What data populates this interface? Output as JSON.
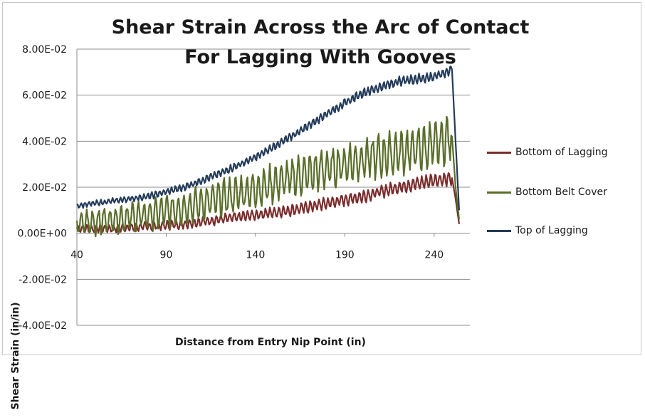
{
  "chart_data": {
    "type": "line",
    "title": "Shear Strain Across the Arc of Contact For Lagging With Gooves",
    "xlabel": "Distance from Entry Nip Point (in)",
    "ylabel": "Shear Strain (in/in)",
    "xlim": [
      40,
      260
    ],
    "ylim": [
      -0.04,
      0.08
    ],
    "x_ticks": [
      40,
      90,
      140,
      190,
      240
    ],
    "x_tick_labels": [
      "40",
      "90",
      "140",
      "190",
      "240"
    ],
    "y_ticks": [
      0.08,
      0.06,
      0.04,
      0.02,
      0.0,
      -0.02,
      -0.04
    ],
    "y_tick_labels": [
      "8.00E-02",
      "6.00E-02",
      "4.00E-02",
      "2.00E-02",
      "0.00E+00",
      "-2.00E-02",
      "-4.00E-02"
    ],
    "grid": "horizontal",
    "legend_position": "right",
    "series": [
      {
        "name": "Bottom of Lagging",
        "color": "#7b2c2c",
        "x": [
          40,
          60,
          80,
          100,
          120,
          140,
          160,
          180,
          200,
          220,
          240,
          250,
          252,
          254
        ],
        "y": [
          0.002,
          0.002,
          0.003,
          0.004,
          0.006,
          0.008,
          0.01,
          0.013,
          0.016,
          0.02,
          0.023,
          0.024,
          0.015,
          0.004
        ],
        "noise": 0.0035,
        "period": 2.5
      },
      {
        "name": "Bottom Belt Cover",
        "color": "#5a6e2a",
        "x": [
          40,
          60,
          80,
          100,
          120,
          140,
          160,
          180,
          200,
          220,
          240,
          250,
          252,
          254
        ],
        "y": [
          0.004,
          0.006,
          0.008,
          0.011,
          0.015,
          0.019,
          0.024,
          0.028,
          0.032,
          0.035,
          0.038,
          0.042,
          0.02,
          0.006
        ],
        "noise": 0.012,
        "period": 3.2
      },
      {
        "name": "Top of Lagging",
        "color": "#243b5a",
        "x": [
          40,
          60,
          80,
          100,
          120,
          140,
          160,
          180,
          200,
          220,
          240,
          250,
          252,
          254
        ],
        "y": [
          0.012,
          0.014,
          0.016,
          0.02,
          0.026,
          0.033,
          0.042,
          0.052,
          0.061,
          0.066,
          0.068,
          0.071,
          0.04,
          0.01
        ],
        "noise": 0.0025,
        "period": 2.2
      }
    ]
  }
}
